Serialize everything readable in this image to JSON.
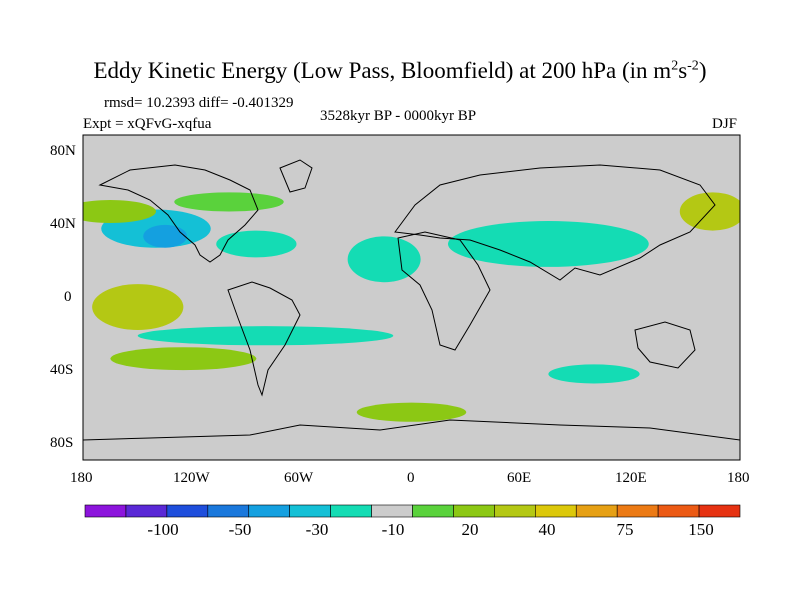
{
  "title": {
    "text": "Eddy Kinetic Energy (Low Pass, Bloomfield) at 200 hPa (in m",
    "sup1": "2",
    "mid": "s",
    "sup2": "-2",
    "close": ")"
  },
  "stats": "rmsd= 10.2393 diff= -0.401329",
  "experiment": "Expt = xQFvG-xqfua",
  "period": "3528kyr BP - 0000kyr BP",
  "season": "DJF",
  "lat_ticks": [
    "80N",
    "40N",
    "0",
    "40S",
    "80S"
  ],
  "lon_ticks": [
    "180",
    "120W",
    "60W",
    "0",
    "60E",
    "120E",
    "180"
  ],
  "colorbar": {
    "labels": [
      "-100",
      "-50",
      "-30",
      "-10",
      "20",
      "40",
      "75",
      "150"
    ],
    "colors": [
      "#8c14dc",
      "#5a28d6",
      "#1e4edc",
      "#1a78dc",
      "#14a0e0",
      "#14c0d6",
      "#14dcb4",
      "#cccccc",
      "#5ad23c",
      "#8cc814",
      "#b4c814",
      "#dcc80a",
      "#e6a014",
      "#ec7a14",
      "#ec5a14",
      "#e63212"
    ]
  },
  "map": {
    "ocean_color": "#cccccc",
    "coast_color": "#000000",
    "anomaly_fields": [
      {
        "lat": 36,
        "lon": -140,
        "level": -20,
        "width_deg": 30,
        "height_deg": 10
      },
      {
        "lat": 32,
        "lon": -135,
        "level": -30,
        "width_deg": 12,
        "height_deg": 6
      },
      {
        "lat": 28,
        "lon": -85,
        "level": -10,
        "width_deg": 22,
        "height_deg": 7
      },
      {
        "lat": 45,
        "lon": -165,
        "level": 20,
        "width_deg": 25,
        "height_deg": 6
      },
      {
        "lat": 50,
        "lon": -100,
        "level": 10,
        "width_deg": 30,
        "height_deg": 5
      },
      {
        "lat": 20,
        "lon": -15,
        "level": -10,
        "width_deg": 20,
        "height_deg": 12
      },
      {
        "lat": 28,
        "lon": 75,
        "level": -10,
        "width_deg": 55,
        "height_deg": 12
      },
      {
        "lat": 45,
        "lon": 165,
        "level": 30,
        "width_deg": 18,
        "height_deg": 10
      },
      {
        "lat": -5,
        "lon": -150,
        "level": 30,
        "width_deg": 25,
        "height_deg": 12
      },
      {
        "lat": -20,
        "lon": -80,
        "level": -10,
        "width_deg": 70,
        "height_deg": 5
      },
      {
        "lat": -32,
        "lon": -125,
        "level": 20,
        "width_deg": 40,
        "height_deg": 6
      },
      {
        "lat": -40,
        "lon": 100,
        "level": -10,
        "width_deg": 25,
        "height_deg": 5
      },
      {
        "lat": -60,
        "lon": 0,
        "level": 20,
        "width_deg": 30,
        "height_deg": 5
      }
    ]
  }
}
